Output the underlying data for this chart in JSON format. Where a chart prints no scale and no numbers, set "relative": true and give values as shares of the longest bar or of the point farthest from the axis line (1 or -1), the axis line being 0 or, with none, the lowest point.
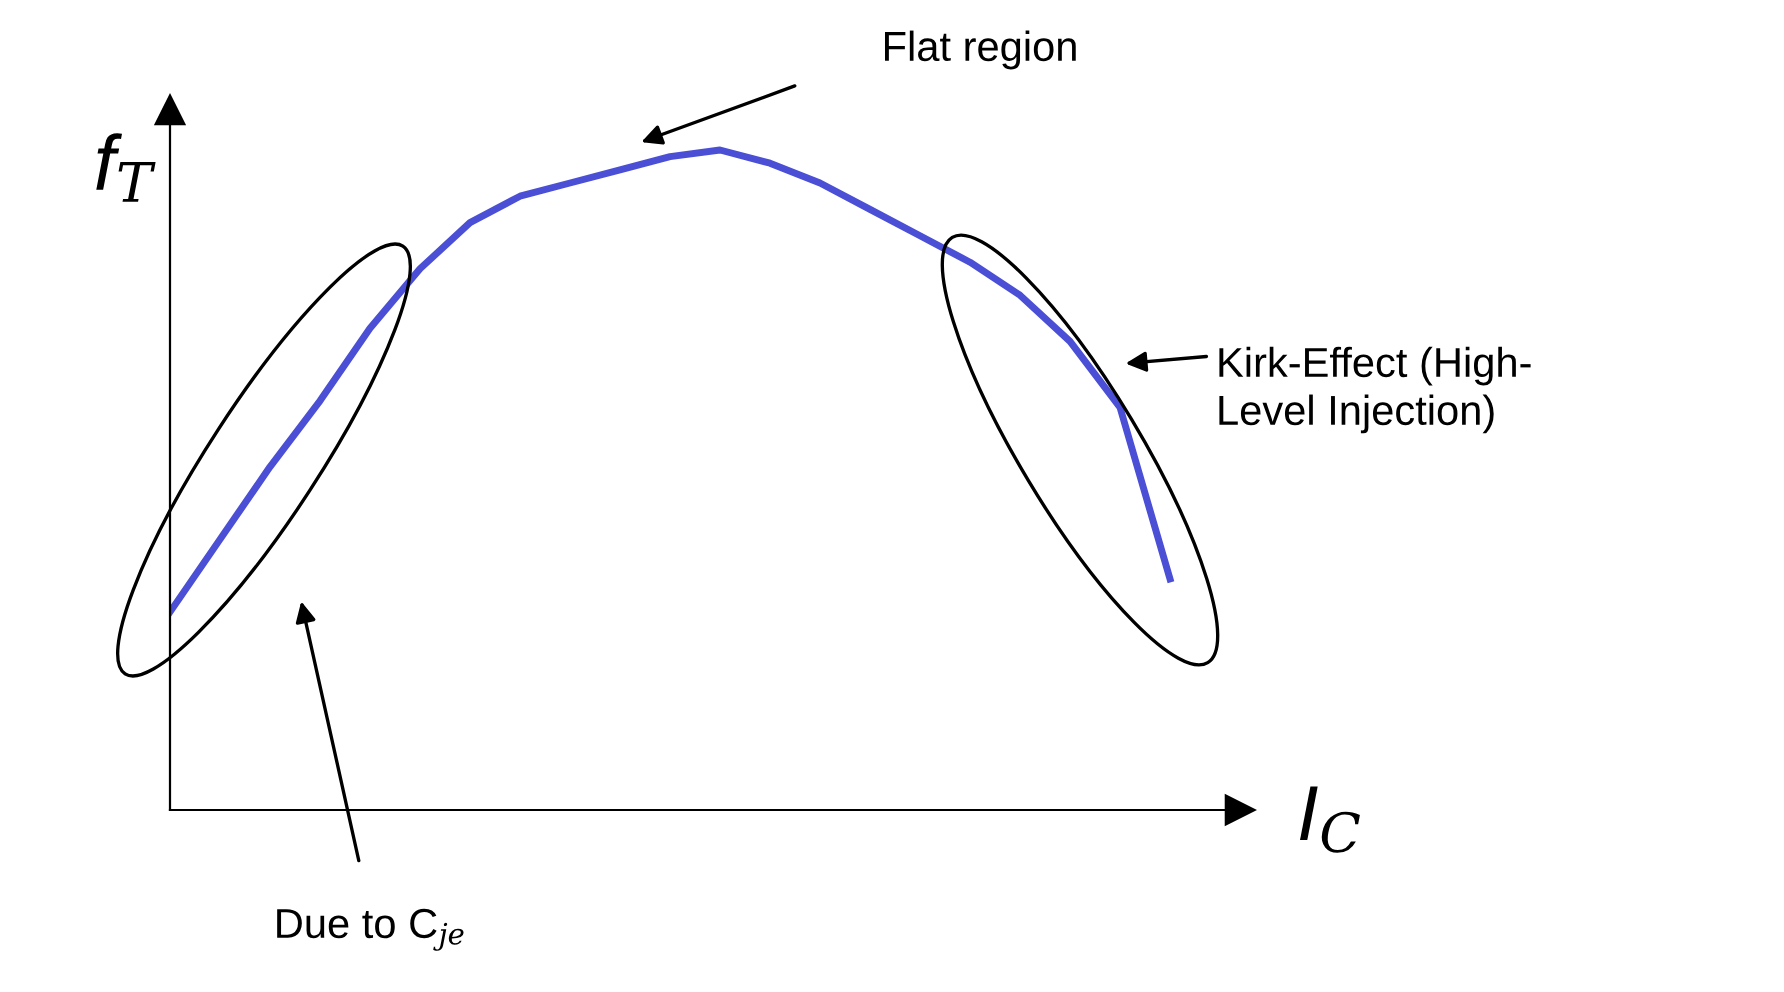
{
  "chart_data": {
    "type": "line",
    "relative": true,
    "xlabel": "I$_{C}$",
    "ylabel": "f$_{T}$",
    "categories": [
      null,
      null,
      null,
      null,
      null,
      null,
      null,
      null,
      null,
      null,
      null,
      null,
      null,
      null,
      null,
      null,
      null,
      null,
      null,
      null,
      null
    ],
    "series": [
      {
        "color": "#4a4fd6",
        "values": [
          0.3,
          0.41,
          0.52,
          0.62,
          0.73,
          0.82,
          0.89,
          0.93,
          0.95,
          0.97,
          0.99,
          1.0,
          0.98,
          0.95,
          0.91,
          0.87,
          0.83,
          0.78,
          0.71,
          0.61,
          0.35
        ]
      }
    ],
    "annotations": [
      "Flat region",
      "Kirk-Effect (High-\nLevel Injection)",
      "Due to C$_{je}$"
    ],
    "legend": false,
    "marker": "none",
    "line_style": "solid"
  }
}
